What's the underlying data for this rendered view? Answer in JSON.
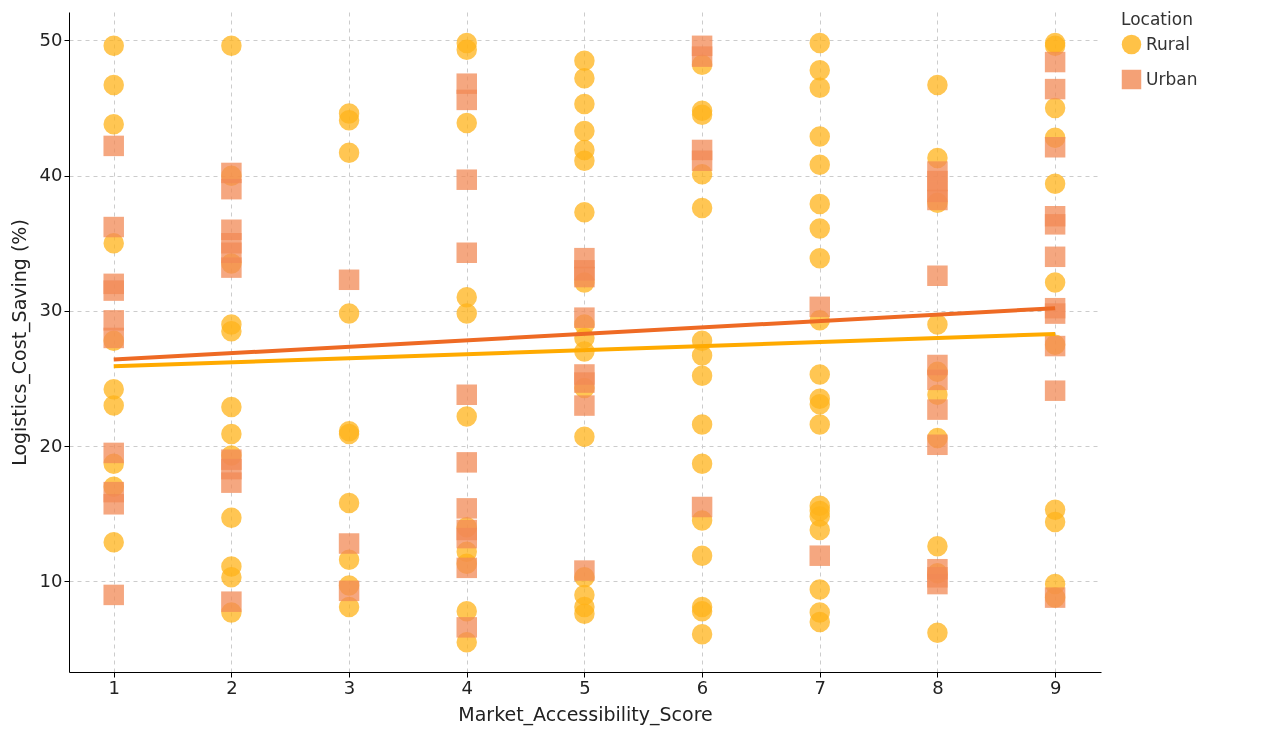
{
  "chart_data": {
    "type": "scatter",
    "xlabel": "Market_Accessibility_Score",
    "ylabel": "Logistics_Cost_Saving (%)",
    "legend_title": "Location",
    "legend": "right",
    "grid": true,
    "xlim": [
      0.62,
      9.39
    ],
    "xticks": [
      1,
      2,
      3,
      4,
      5,
      6,
      7,
      8,
      9
    ],
    "ylim": [
      3.3,
      52.1
    ],
    "yticks": [
      10,
      20,
      30,
      40,
      50
    ],
    "series": [
      {
        "name": "Rural",
        "marker": "circle",
        "color": "#ffb31a",
        "x": [
          1,
          1,
          1,
          1,
          1,
          1,
          1,
          1,
          1,
          1,
          2,
          2,
          2,
          2,
          2,
          2,
          2,
          2,
          2,
          2,
          2,
          2,
          3,
          3,
          3,
          3,
          3,
          3,
          3,
          3,
          3,
          3,
          4,
          4,
          4,
          4,
          4,
          4,
          4,
          4,
          4,
          4,
          4,
          5,
          5,
          5,
          5,
          5,
          5,
          5,
          5,
          5,
          5,
          5,
          5,
          5,
          5,
          5,
          5,
          5,
          6,
          6,
          6,
          6,
          6,
          6,
          6,
          6,
          6,
          6,
          6,
          6,
          6,
          6,
          6,
          7,
          7,
          7,
          7,
          7,
          7,
          7,
          7,
          7,
          7,
          7,
          7,
          7,
          7,
          7,
          7,
          7,
          7,
          7,
          7,
          8,
          8,
          8,
          8,
          8,
          8,
          8,
          8,
          8,
          8,
          9,
          9,
          9,
          9,
          9,
          9,
          9,
          9,
          9,
          9,
          9
        ],
        "values": [
          49.6,
          46.7,
          43.8,
          35.0,
          27.8,
          24.2,
          23.0,
          18.7,
          17.0,
          12.9,
          49.6,
          40.0,
          33.5,
          29.0,
          28.5,
          22.9,
          20.9,
          19.3,
          14.7,
          11.1,
          10.3,
          7.7,
          44.6,
          44.1,
          41.7,
          29.8,
          21.1,
          20.9,
          15.8,
          11.6,
          9.7,
          8.1,
          49.8,
          49.3,
          43.9,
          31.0,
          29.8,
          22.2,
          14.0,
          12.2,
          11.3,
          7.8,
          5.5,
          48.5,
          47.2,
          45.3,
          43.3,
          41.9,
          41.1,
          37.3,
          32.1,
          29.0,
          28.0,
          27.0,
          24.3,
          20.7,
          10.3,
          9.0,
          8.1,
          7.6,
          48.2,
          44.8,
          44.5,
          40.1,
          37.6,
          27.8,
          26.7,
          25.2,
          21.6,
          18.7,
          14.5,
          11.9,
          8.1,
          7.8,
          6.1,
          49.8,
          47.8,
          46.5,
          42.9,
          40.8,
          37.9,
          36.1,
          33.9,
          29.3,
          25.3,
          23.5,
          23.1,
          21.6,
          15.6,
          15.2,
          14.8,
          13.8,
          9.4,
          7.7,
          7.0,
          46.7,
          41.3,
          38.0,
          29.0,
          25.5,
          23.8,
          20.6,
          12.6,
          10.6,
          6.2,
          49.8,
          49.6,
          45.0,
          42.8,
          39.4,
          32.1,
          27.5,
          15.3,
          14.4,
          9.8,
          8.8
        ]
      },
      {
        "name": "Urban",
        "marker": "square",
        "color": "#f28a55",
        "x": [
          1,
          1,
          1,
          1,
          1,
          1,
          1,
          1,
          1,
          1,
          2,
          2,
          2,
          2,
          2,
          2,
          2,
          2,
          2,
          2,
          3,
          3,
          3,
          4,
          4,
          4,
          4,
          4,
          4,
          4,
          4,
          4,
          4,
          4,
          5,
          5,
          5,
          5,
          5,
          5,
          5,
          5,
          6,
          6,
          6,
          6,
          6,
          7,
          7,
          8,
          8,
          8,
          8,
          8,
          8,
          8,
          8,
          8,
          8,
          8,
          8,
          9,
          9,
          9,
          9,
          9,
          9,
          9,
          9,
          9,
          9,
          9
        ],
        "values": [
          42.2,
          36.2,
          32.0,
          31.5,
          29.3,
          28.0,
          19.5,
          16.6,
          15.7,
          9.0,
          40.2,
          39.0,
          36.0,
          35.0,
          34.3,
          33.2,
          19.0,
          18.3,
          17.3,
          8.5,
          32.3,
          12.8,
          9.3,
          46.8,
          45.6,
          39.7,
          34.3,
          23.8,
          18.8,
          15.4,
          13.8,
          13.2,
          11.0,
          6.6,
          33.9,
          33.0,
          32.5,
          29.5,
          25.3,
          24.7,
          23.0,
          10.8,
          49.6,
          48.8,
          41.9,
          41.1,
          15.5,
          30.3,
          11.9,
          40.3,
          39.6,
          38.8,
          38.2,
          32.6,
          26.0,
          24.9,
          22.7,
          20.1,
          10.9,
          10.3,
          9.8,
          48.4,
          46.4,
          42.1,
          37.0,
          36.4,
          34.0,
          30.2,
          29.8,
          27.4,
          24.1,
          8.8
        ]
      },
      {
        "type": "line",
        "color": "#ffaa00",
        "x": [
          1,
          9
        ],
        "values": [
          25.9,
          28.3
        ]
      },
      {
        "type": "line",
        "color": "#ee6a24",
        "x": [
          1,
          9
        ],
        "values": [
          26.4,
          30.2
        ]
      }
    ]
  }
}
